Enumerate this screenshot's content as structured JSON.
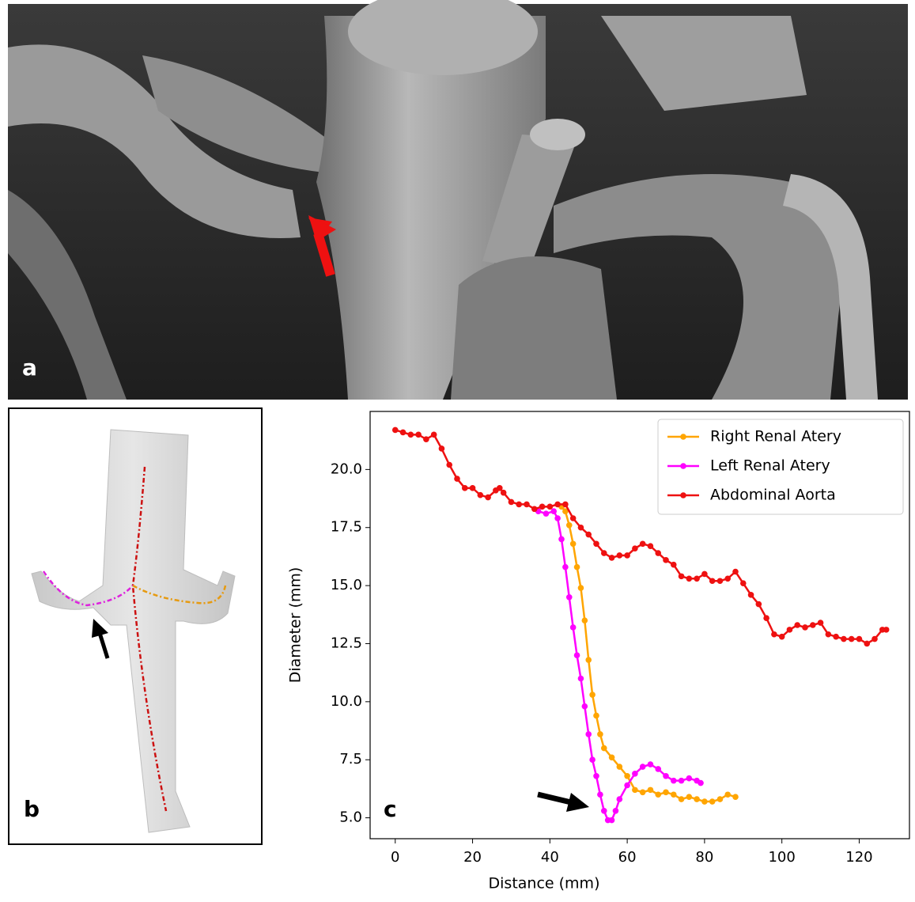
{
  "panel_labels": [
    "a",
    "b",
    "c"
  ],
  "chart_data": {
    "type": "line",
    "xlabel": "Distance (mm)",
    "ylabel": "Diameter (mm)",
    "xlim": [
      -6.5,
      133
    ],
    "ylim": [
      4.1,
      22.5
    ],
    "xticks": [
      0,
      20,
      40,
      60,
      80,
      100,
      120
    ],
    "yticks": [
      {
        "value": 5,
        "label": "5.0"
      },
      {
        "value": 7.5,
        "label": "7.5"
      },
      {
        "value": 10,
        "label": "10.0"
      },
      {
        "value": 12.5,
        "label": "12.5"
      },
      {
        "value": 15,
        "label": "15.0"
      },
      {
        "value": 17.5,
        "label": "17.5"
      },
      {
        "value": 20,
        "label": "20.0"
      }
    ],
    "legend": "upper right",
    "series": [
      {
        "name": "Right Renal Atery",
        "color": "#ffa500",
        "x": [
          43,
          44,
          45,
          46,
          47,
          48,
          49,
          50,
          51,
          52,
          53,
          54,
          56,
          58,
          60,
          62,
          64,
          66,
          68,
          70,
          72,
          74,
          76,
          78,
          80,
          82,
          84,
          86,
          88
        ],
        "values": [
          18.4,
          18.2,
          17.6,
          16.8,
          15.8,
          14.9,
          13.5,
          11.8,
          10.3,
          9.4,
          8.6,
          8.0,
          7.6,
          7.2,
          6.8,
          6.2,
          6.1,
          6.2,
          6.0,
          6.1,
          6.0,
          5.8,
          5.9,
          5.8,
          5.7,
          5.7,
          5.8,
          6.0,
          5.9
        ]
      },
      {
        "name": "Left Renal Atery",
        "color": "#ff00ff",
        "x": [
          37,
          39,
          41,
          42,
          43,
          44,
          45,
          46,
          47,
          48,
          49,
          50,
          51,
          52,
          53,
          54,
          55,
          56,
          57,
          58,
          60,
          62,
          64,
          66,
          68,
          70,
          72,
          74,
          76,
          78,
          79
        ],
        "values": [
          18.2,
          18.1,
          18.2,
          17.9,
          17.0,
          15.8,
          14.5,
          13.2,
          12.0,
          11.0,
          9.8,
          8.6,
          7.5,
          6.8,
          6.0,
          5.3,
          4.9,
          4.9,
          5.3,
          5.8,
          6.4,
          6.9,
          7.2,
          7.3,
          7.1,
          6.8,
          6.6,
          6.6,
          6.7,
          6.6,
          6.5
        ]
      },
      {
        "name": "Abdominal Aorta",
        "color": "#ee1111",
        "x": [
          0,
          2,
          4,
          6,
          8,
          10,
          12,
          14,
          16,
          18,
          20,
          22,
          24,
          26,
          27,
          28,
          30,
          32,
          34,
          36,
          38,
          40,
          42,
          44,
          46,
          48,
          50,
          52,
          54,
          56,
          58,
          60,
          62,
          64,
          66,
          68,
          70,
          72,
          74,
          76,
          78,
          80,
          82,
          84,
          86,
          88,
          90,
          92,
          94,
          96,
          98,
          100,
          102,
          104,
          106,
          108,
          110,
          112,
          114,
          116,
          118,
          120,
          122,
          124,
          126,
          127
        ],
        "values": [
          21.7,
          21.6,
          21.5,
          21.5,
          21.3,
          21.5,
          20.9,
          20.2,
          19.6,
          19.2,
          19.2,
          18.9,
          18.8,
          19.1,
          19.2,
          19.0,
          18.6,
          18.5,
          18.5,
          18.3,
          18.4,
          18.4,
          18.5,
          18.5,
          17.9,
          17.5,
          17.2,
          16.8,
          16.4,
          16.2,
          16.3,
          16.3,
          16.6,
          16.8,
          16.7,
          16.4,
          16.1,
          15.9,
          15.4,
          15.3,
          15.3,
          15.5,
          15.2,
          15.2,
          15.3,
          15.6,
          15.1,
          14.6,
          14.2,
          13.6,
          12.9,
          12.8,
          13.1,
          13.3,
          13.2,
          13.3,
          13.4,
          12.9,
          12.8,
          12.7,
          12.7,
          12.7,
          12.5,
          12.7,
          13.1,
          13.1
        ]
      }
    ]
  }
}
